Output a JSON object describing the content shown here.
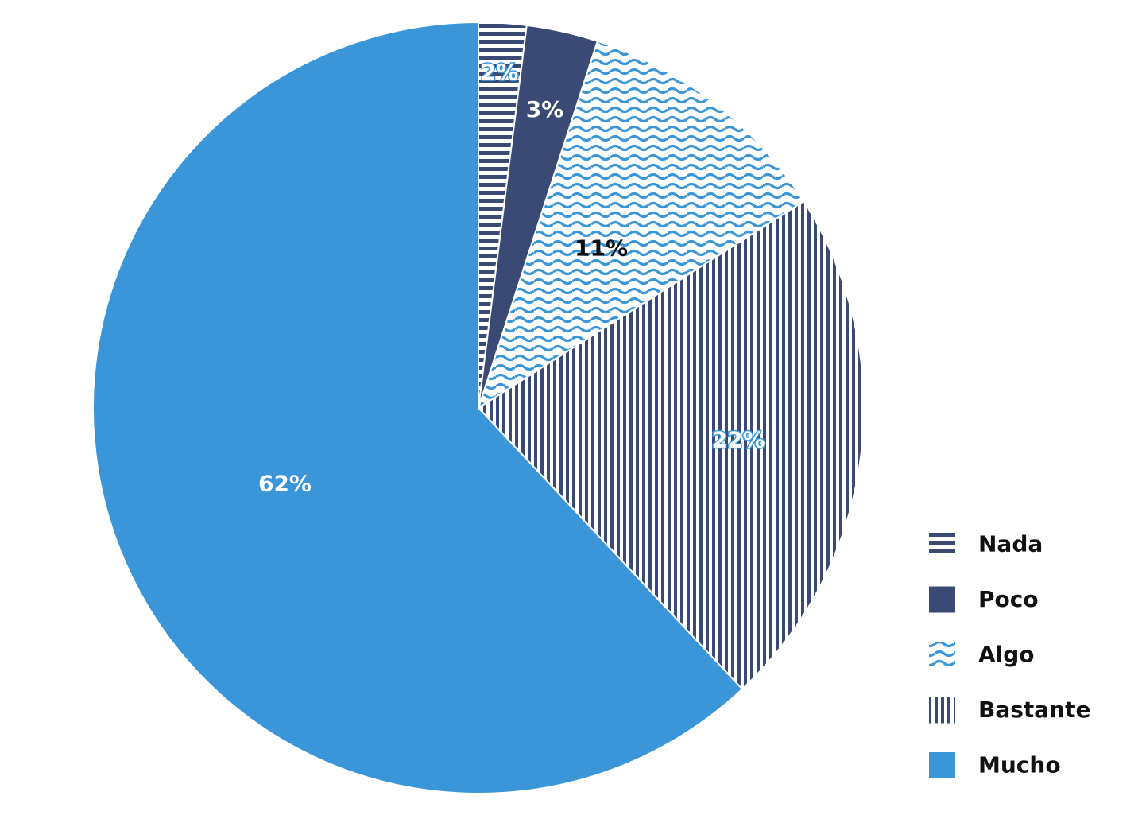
{
  "chart_data": {
    "type": "pie",
    "categories": [
      "Nada",
      "Poco",
      "Algo",
      "Bastante",
      "Mucho"
    ],
    "values": [
      2,
      3,
      11,
      22,
      62
    ],
    "labels": [
      "2%",
      "3%",
      "11%",
      "22%",
      "62%"
    ],
    "start": "12 o'clock",
    "direction": "clockwise",
    "legend_position": "bottom-right",
    "slices": [
      {
        "name": "Nada",
        "value": 2,
        "label": "2%",
        "pattern": "horizontal-stripes",
        "color": "#3a4a75",
        "bg": "#ffffff",
        "label_color": "#ffffff",
        "label_outline": "#3a96d9"
      },
      {
        "name": "Poco",
        "value": 3,
        "label": "3%",
        "pattern": "solid",
        "color": "#3a4a75",
        "bg": "#3a4a75",
        "label_color": "#ffffff",
        "label_outline": ""
      },
      {
        "name": "Algo",
        "value": 11,
        "label": "11%",
        "pattern": "waves",
        "color": "#3a96d9",
        "bg": "#ffffff",
        "label_color": "#111111",
        "label_outline": ""
      },
      {
        "name": "Bastante",
        "value": 22,
        "label": "22%",
        "pattern": "vertical-stripes",
        "color": "#3a4a75",
        "bg": "#ffffff",
        "label_color": "#ffffff",
        "label_outline": "#3a96d9"
      },
      {
        "name": "Mucho",
        "value": 62,
        "label": "62%",
        "pattern": "solid",
        "color": "#3a96d9",
        "bg": "#3a96d9",
        "label_color": "#ffffff",
        "label_outline": ""
      }
    ]
  }
}
